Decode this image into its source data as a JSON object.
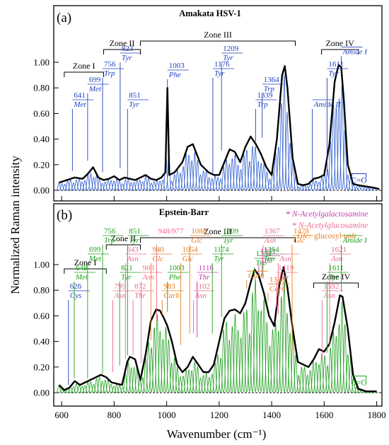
{
  "figure": {
    "ylabel": "Normalized Raman intensity",
    "xlabel": "Wavenumber (cm⁻¹)",
    "colors": {
      "fit": "#2e5fd0",
      "fit_b": "#1ea01e",
      "envelope": "#000000",
      "carb": "#e87d1e",
      "glyc": "#e05a9e"
    }
  },
  "chart_data": [
    {
      "type": "line",
      "panel": "(a)",
      "title": "Amakata HSV-1",
      "xlim": [
        570,
        1820
      ],
      "ylim": [
        -0.05,
        1.22
      ],
      "yticks": [
        "0.00",
        "0.20",
        "0.40",
        "0.60",
        "0.80",
        "1.00"
      ],
      "xticks": [],
      "zones": [
        {
          "label": "Zone I",
          "from": 610,
          "to": 760
        },
        {
          "label": "Zone II",
          "from": 760,
          "to": 900
        },
        {
          "label": "Zone III",
          "from": 900,
          "to": 1490
        },
        {
          "label": "Zone IV",
          "from": 1590,
          "to": 1730
        }
      ],
      "annotations": [
        {
          "num": "641",
          "name": "Met",
          "x": 641,
          "y": 0.14
        },
        {
          "num": "699",
          "name": "Met",
          "x": 699,
          "y": 0.22
        },
        {
          "num": "756",
          "name": "Trp",
          "x": 756,
          "y": 0.13
        },
        {
          "num": "823",
          "name": "Tyr",
          "x": 823,
          "y": 0.16
        },
        {
          "num": "851",
          "name": "Tyr",
          "x": 851,
          "y": 0.09
        },
        {
          "num": "1003",
          "name": "Phe",
          "x": 1003,
          "y": 0.79
        },
        {
          "num": "1176",
          "name": "Tyr",
          "x": 1176,
          "y": 0.12
        },
        {
          "num": "1209",
          "name": "Tyr",
          "x": 1209,
          "y": 0.3
        },
        {
          "num": "1339",
          "name": "Trp",
          "x": 1339,
          "y": 0.37
        },
        {
          "num": "1364",
          "name": "Trp",
          "x": 1364,
          "y": 0.4
        },
        {
          "num": "1611",
          "name": "Tyr",
          "x": 1611,
          "y": 0.1
        },
        {
          "num": "",
          "name": "Amide I",
          "x": 1665,
          "y": 0.97
        },
        {
          "num": "",
          "name": "Amide II",
          "x": 1555,
          "y": 0.08
        },
        {
          "num": "",
          "name": "C=O",
          "x": 1730,
          "y": 0.02
        }
      ],
      "series": [
        {
          "role": "envelope",
          "x": [
            590,
            620,
            650,
            680,
            700,
            720,
            740,
            760,
            780,
            800,
            820,
            840,
            860,
            880,
            900,
            920,
            940,
            960,
            980,
            995,
            1003,
            1010,
            1030,
            1060,
            1080,
            1100,
            1130,
            1160,
            1180,
            1200,
            1220,
            1240,
            1260,
            1280,
            1300,
            1320,
            1340,
            1360,
            1380,
            1400,
            1420,
            1440,
            1450,
            1460,
            1480,
            1500,
            1520,
            1540,
            1560,
            1580,
            1600,
            1620,
            1640,
            1655,
            1665,
            1675,
            1690,
            1710,
            1730,
            1760,
            1790,
            1810
          ],
          "y": [
            0.06,
            0.08,
            0.1,
            0.09,
            0.13,
            0.18,
            0.1,
            0.08,
            0.09,
            0.11,
            0.08,
            0.1,
            0.09,
            0.08,
            0.1,
            0.12,
            0.09,
            0.08,
            0.1,
            0.14,
            0.8,
            0.12,
            0.14,
            0.22,
            0.34,
            0.36,
            0.2,
            0.14,
            0.12,
            0.12,
            0.22,
            0.32,
            0.3,
            0.22,
            0.34,
            0.42,
            0.36,
            0.28,
            0.18,
            0.12,
            0.4,
            0.9,
            0.97,
            0.8,
            0.25,
            0.05,
            0.04,
            0.05,
            0.09,
            0.1,
            0.12,
            0.36,
            0.85,
            0.98,
            0.96,
            0.7,
            0.2,
            0.05,
            0.04,
            0.03,
            0.02,
            0.01
          ]
        }
      ]
    },
    {
      "type": "line",
      "panel": "(b)",
      "title": "Epstein-Barr",
      "xlim": [
        570,
        1820
      ],
      "ylim": [
        -0.05,
        1.22
      ],
      "yticks": [
        "0.00",
        "0.20",
        "0.40",
        "0.60",
        "0.80",
        "1.00"
      ],
      "xticks": [
        "600",
        "800",
        "1000",
        "1200",
        "1400",
        "1600",
        "1800"
      ],
      "legend": [
        {
          "symbol": "*",
          "text": "N-Acetylgalactosamine"
        },
        {
          "symbol": "*",
          "text": "N-Acetylglucosamine"
        },
        {
          "symbol": "Glc:",
          "text": "glucosyl unit"
        }
      ],
      "zones": [
        {
          "label": "Zone I",
          "from": 610,
          "to": 770
        },
        {
          "label": "Zone II",
          "from": 770,
          "to": 900
        },
        {
          "label": "Zone III",
          "from": 900,
          "to": 1490
        },
        {
          "label": "Zone IV",
          "from": 1560,
          "to": 1730
        }
      ],
      "annotations": [
        {
          "num": "626",
          "name": "Cys",
          "x": 626,
          "y": 0.05
        },
        {
          "num": "648",
          "name": "Met",
          "x": 648,
          "y": 0.1
        },
        {
          "num": "699",
          "name": "Met",
          "x": 699,
          "y": 0.1
        },
        {
          "num": "756",
          "name": "Trp",
          "x": 756,
          "y": 0.14
        },
        {
          "num": "795",
          "name": "Asn",
          "x": 795,
          "y": 0.15
        },
        {
          "num": "821",
          "name": "Tyr",
          "x": 821,
          "y": 0.2
        },
        {
          "num": "843",
          "name": "Asn",
          "x": 843,
          "y": 0.25
        },
        {
          "num": "851",
          "name": "Tyr",
          "x": 851,
          "y": 0.28
        },
        {
          "num": "872",
          "name": "Thr",
          "x": 872,
          "y": 0.28
        },
        {
          "num": "903",
          "name": "Asn",
          "x": 903,
          "y": 0.22
        },
        {
          "num": "940",
          "name": "Glc",
          "x": 940,
          "y": 0.4
        },
        {
          "num": "948/977",
          "name": "",
          "x": 962,
          "y": 0.55
        },
        {
          "num": "983",
          "name": "Carb",
          "x": 983,
          "y": 0.6
        },
        {
          "num": "1003",
          "name": "Phe",
          "x": 1003,
          "y": 0.62
        },
        {
          "num": "1054",
          "name": "Glc",
          "x": 1054,
          "y": 0.36
        },
        {
          "num": "1088",
          "name": "Glc",
          "x": 1088,
          "y": 0.45
        },
        {
          "num": "1102",
          "name": "Asn",
          "x": 1102,
          "y": 0.45
        },
        {
          "num": "1116",
          "name": "Thr",
          "x": 1116,
          "y": 0.42
        },
        {
          "num": "1174",
          "name": "Tyr",
          "x": 1174,
          "y": 0.45
        },
        {
          "num": "1209",
          "name": "Tyr",
          "x": 1209,
          "y": 0.58
        },
        {
          "num": "1334",
          "name": "Trp",
          "x": 1334,
          "y": 0.9
        },
        {
          "num": "1351",
          "name": "Thr",
          "x": 1351,
          "y": 0.92
        },
        {
          "num": "1364",
          "name": "Trp",
          "x": 1364,
          "y": 0.9
        },
        {
          "num": "1367",
          "name": "Asn",
          "x": 1367,
          "y": 0.88
        },
        {
          "num": "1386",
          "name": "Carb",
          "x": 1386,
          "y": 0.7
        },
        {
          "num": "1419",
          "name": "Thr",
          "x": 1419,
          "y": 0.65
        },
        {
          "num": "",
          "name": "Asn",
          "x": 1425,
          "y": 0.6
        },
        {
          "num": "1478",
          "name": "Glc",
          "x": 1478,
          "y": 0.3
        },
        {
          "num": "1592",
          "name": "Asn",
          "x": 1592,
          "y": 0.25
        },
        {
          "num": "1611",
          "name": "Tyr",
          "x": 1611,
          "y": 0.3
        },
        {
          "num": "1621",
          "name": "Asn",
          "x": 1621,
          "y": 0.35
        },
        {
          "num": "",
          "name": "Amide I",
          "x": 1665,
          "y": 0.78
        },
        {
          "num": "",
          "name": "Carb",
          "x": 1305,
          "y": 0.8
        },
        {
          "num": "",
          "name": "C=O",
          "x": 1730,
          "y": 0.02
        }
      ],
      "series": [
        {
          "role": "envelope",
          "x": [
            590,
            610,
            630,
            650,
            670,
            690,
            710,
            730,
            750,
            770,
            790,
            810,
            830,
            850,
            860,
            870,
            880,
            890,
            900,
            920,
            940,
            960,
            975,
            990,
            1003,
            1020,
            1040,
            1060,
            1080,
            1100,
            1120,
            1140,
            1160,
            1180,
            1200,
            1220,
            1240,
            1260,
            1280,
            1300,
            1320,
            1335,
            1350,
            1370,
            1390,
            1410,
            1430,
            1445,
            1460,
            1480,
            1500,
            1520,
            1540,
            1560,
            1580,
            1600,
            1620,
            1640,
            1660,
            1670,
            1690,
            1710,
            1730,
            1760,
            1800
          ],
          "y": [
            0.06,
            0.02,
            0.04,
            0.09,
            0.06,
            0.08,
            0.1,
            0.12,
            0.14,
            0.12,
            0.08,
            0.07,
            0.06,
            0.24,
            0.28,
            0.27,
            0.26,
            0.18,
            0.1,
            0.3,
            0.56,
            0.65,
            0.64,
            0.58,
            0.52,
            0.4,
            0.22,
            0.16,
            0.2,
            0.28,
            0.22,
            0.16,
            0.16,
            0.22,
            0.4,
            0.58,
            0.64,
            0.65,
            0.62,
            0.7,
            0.86,
            0.96,
            0.92,
            0.78,
            0.6,
            0.52,
            0.85,
            0.98,
            0.82,
            0.5,
            0.24,
            0.22,
            0.2,
            0.26,
            0.34,
            0.32,
            0.38,
            0.55,
            0.76,
            0.75,
            0.5,
            0.14,
            0.03,
            0.01,
            0.01
          ]
        }
      ]
    }
  ]
}
